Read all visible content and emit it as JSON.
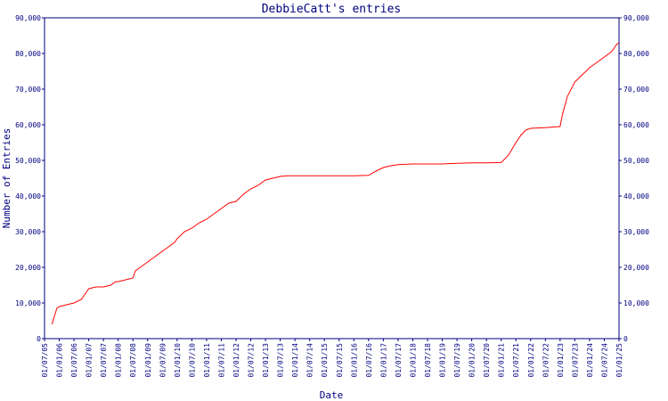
{
  "chart_data": {
    "type": "line",
    "title": "DebbieCatt's entries",
    "xlabel": "Date",
    "ylabel": "Number of Entries",
    "ylim": [
      0,
      90000
    ],
    "yticks": [
      "0",
      "10,000",
      "20,000",
      "30,000",
      "40,000",
      "50,000",
      "60,000",
      "70,000",
      "80,000",
      "90,000"
    ],
    "xticks": [
      "01/07/05",
      "01/01/06",
      "01/07/06",
      "01/01/07",
      "01/07/07",
      "01/01/08",
      "01/07/08",
      "01/01/09",
      "01/07/09",
      "01/01/10",
      "01/07/10",
      "01/01/11",
      "01/07/11",
      "01/01/12",
      "01/07/12",
      "01/01/13",
      "01/07/13",
      "01/01/14",
      "01/07/14",
      "01/01/15",
      "01/07/15",
      "01/01/16",
      "01/07/16",
      "01/01/17",
      "01/07/17",
      "01/01/18",
      "01/07/18",
      "01/01/19",
      "01/07/19",
      "01/01/20",
      "01/07/20",
      "01/01/21",
      "01/07/21",
      "01/01/22",
      "01/07/22",
      "01/01/23",
      "01/07/23",
      "01/01/24",
      "01/07/24",
      "01/01/25"
    ],
    "grid": false,
    "line_color": "#ff0000",
    "axis_color": "#000080",
    "series": [
      {
        "x": [
          "01/10/05",
          "01/12/05",
          "01/01/06",
          "01/04/06",
          "01/07/06",
          "01/10/06",
          "01/12/06",
          "01/01/07",
          "01/04/07",
          "01/07/07",
          "01/10/07",
          "01/12/07",
          "01/01/08",
          "01/04/08",
          "01/07/08",
          "01/08/08",
          "01/10/08",
          "01/12/08",
          "01/01/09",
          "01/04/09",
          "01/07/09",
          "01/10/09",
          "01/12/09",
          "01/01/10",
          "01/04/10",
          "01/07/10",
          "01/10/10",
          "01/01/11",
          "01/04/11",
          "01/07/11",
          "01/10/11",
          "01/01/12",
          "01/04/12",
          "01/07/12",
          "01/10/12",
          "01/01/13",
          "01/04/13",
          "01/07/13",
          "01/10/13",
          "01/01/14",
          "01/04/14",
          "01/07/14",
          "01/01/15",
          "01/07/15",
          "01/01/16",
          "01/07/16",
          "01/10/16",
          "01/01/17",
          "01/04/17",
          "01/07/17",
          "01/01/18",
          "01/07/18",
          "01/01/19",
          "01/07/19",
          "01/01/20",
          "01/07/20",
          "01/01/21",
          "01/04/21",
          "01/07/21",
          "01/09/21",
          "01/11/21",
          "01/01/22",
          "01/07/22",
          "01/01/23",
          "01/02/23",
          "01/04/23",
          "01/07/23",
          "01/10/23",
          "01/01/24",
          "01/04/24",
          "01/07/24",
          "01/10/24",
          "01/11/24",
          "01/12/24",
          "01/01/25"
        ],
        "values": [
          4000,
          8500,
          9000,
          9500,
          10000,
          11000,
          13000,
          14000,
          14500,
          14500,
          15000,
          16000,
          16000,
          16500,
          17000,
          19000,
          20000,
          21000,
          21500,
          23000,
          24500,
          26000,
          27000,
          28000,
          30000,
          31000,
          32500,
          33500,
          35000,
          36500,
          38000,
          38500,
          40500,
          42000,
          43000,
          44500,
          45000,
          45500,
          45700,
          45700,
          45700,
          45700,
          45700,
          45700,
          45700,
          45800,
          47000,
          48000,
          48500,
          48800,
          49000,
          49000,
          49000,
          49200,
          49300,
          49300,
          49400,
          51500,
          55000,
          57000,
          58500,
          59000,
          59200,
          59500,
          63000,
          68000,
          72000,
          74000,
          76000,
          77500,
          79000,
          80500,
          81500,
          82500,
          83000
        ]
      }
    ]
  }
}
